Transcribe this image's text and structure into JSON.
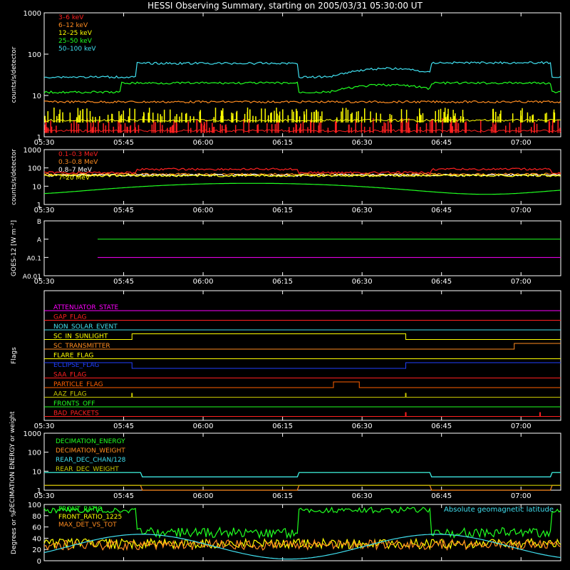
{
  "title": "HESSI Observing Summary, starting on 2005/03/31 05:30:00 UT",
  "time_labels": [
    "05:30",
    "05:45",
    "06:00",
    "06:15",
    "06:30",
    "06:45",
    "07:00"
  ],
  "colors": {
    "red": "#ff2020",
    "orange": "#ff8c20",
    "yellow": "#ffff00",
    "green": "#20ff20",
    "cyan": "#40e0f0",
    "magenta": "#ff00ff",
    "blue": "#2040ff",
    "olive": "#c8c800",
    "dkorange": "#ff6000",
    "white": "#ffffff"
  },
  "chart_data": [
    {
      "type": "line",
      "id": "lowE",
      "ylabel": "counts/s/detector",
      "log": true,
      "ylim": [
        1,
        1000
      ],
      "yticks": [
        "1",
        "10",
        "100",
        "1000"
      ],
      "series": [
        {
          "name": "3–6 keV",
          "color": "red",
          "level": 1.4,
          "style": "spiky"
        },
        {
          "name": "6–12 keV",
          "color": "orange",
          "level": 7
        },
        {
          "name": "12–25 keV",
          "color": "yellow",
          "level": 2.5,
          "style": "spiky"
        },
        {
          "name": "25–50 keV",
          "color": "green",
          "level": 12,
          "step": [
            [
              0.15,
              0.49,
              20
            ],
            [
              0.75,
              0.98,
              20
            ]
          ],
          "hump": [
            0.55,
            0.78,
            18
          ]
        },
        {
          "name": "50–100 keV",
          "color": "cyan",
          "level": 28,
          "step": [
            [
              0.18,
              0.49,
              60
            ],
            [
              0.75,
              0.98,
              62
            ]
          ],
          "hump": [
            0.55,
            0.78,
            45
          ]
        }
      ]
    },
    {
      "type": "line",
      "id": "highE",
      "ylabel": "counts/s/detector",
      "log": true,
      "ylim": [
        1,
        1000
      ],
      "yticks": [
        "1",
        "10",
        "100",
        "1000"
      ],
      "series": [
        {
          "name": "0.1–0.3 MeV",
          "color": "red",
          "level": 55,
          "step": [
            [
              0.18,
              0.49,
              85
            ],
            [
              0.75,
              0.98,
              85
            ]
          ]
        },
        {
          "name": "0.3–0.8 MeV",
          "color": "orange",
          "level": 45
        },
        {
          "name": "0.8–7 MeV",
          "color": "white",
          "level": 40
        },
        {
          "name": "7–20 MeV",
          "color": "yellow",
          "level": 38
        },
        {
          "name": "",
          "color": "green",
          "level": 9,
          "wave": true
        }
      ]
    },
    {
      "type": "line",
      "id": "goes",
      "ylabel": "GOES-12 [W m⁻²]",
      "log": true,
      "yticks": [
        "A0.01",
        "A0.1",
        "A",
        "B"
      ],
      "series": [
        {
          "name": "",
          "color": "green",
          "level": "A"
        },
        {
          "name": "",
          "color": "magenta",
          "level": "A0.1"
        }
      ]
    },
    {
      "type": "flags",
      "id": "flags",
      "ylabel": "Flags",
      "flags": [
        {
          "name": "ATTENUATOR_STATE",
          "color": "magenta"
        },
        {
          "name": "GAP_FLAG",
          "color": "red"
        },
        {
          "name": "NON_SOLAR_EVENT",
          "color": "cyan"
        },
        {
          "name": "SC_IN_SUNLIGHT",
          "color": "yellow",
          "high": [
            [
              0.17,
              0.7
            ]
          ]
        },
        {
          "name": "SC_TRANSMITTER",
          "color": "orange",
          "high": [
            [
              0.91,
              1.0
            ]
          ]
        },
        {
          "name": "FLARE_FLAG",
          "color": "yellow"
        },
        {
          "name": "ECLIPSE_FLAG",
          "color": "blue",
          "high": [
            [
              0.0,
              0.17
            ],
            [
              0.7,
              1.0
            ]
          ]
        },
        {
          "name": "SAA_FLAG",
          "color": "red"
        },
        {
          "name": "PARTICLE_FLAG",
          "color": "dkorange",
          "high": [
            [
              0.56,
              0.61
            ]
          ]
        },
        {
          "name": "AAZ_FLAG",
          "color": "olive",
          "pulses": [
            0.17,
            0.7
          ]
        },
        {
          "name": "FRONTS_OFF",
          "color": "green"
        },
        {
          "name": "BAD_PACKETS",
          "color": "red",
          "pulses": [
            0.7,
            0.96
          ]
        }
      ]
    },
    {
      "type": "line",
      "id": "decim",
      "ylabel": "DECIMATION ENERGY or weight",
      "log": true,
      "ylim": [
        1,
        1000
      ],
      "yticks": [
        "1",
        "10",
        "100",
        "1000"
      ],
      "series": [
        {
          "name": "DECIMATION_ENERGY",
          "color": "green",
          "level": 8.5,
          "drop": [
            [
              0.19,
              0.49,
              5
            ],
            [
              0.75,
              0.98,
              5
            ]
          ]
        },
        {
          "name": "DECIMATION_WEIGHT",
          "color": "orange",
          "level": 1.8,
          "drop": [
            [
              0.19,
              0.49,
              1
            ],
            [
              0.75,
              0.98,
              1
            ]
          ]
        },
        {
          "name": "REAR_DEC_CHAN/128",
          "color": "cyan",
          "level": 8.5,
          "drop": [
            [
              0.19,
              0.49,
              5
            ],
            [
              0.75,
              0.98,
              5
            ]
          ]
        },
        {
          "name": "REAR_DEC_WEIGHT",
          "color": "olive",
          "level": 1.8
        }
      ]
    },
    {
      "type": "line",
      "id": "ratio",
      "ylabel": "Degrees or %",
      "log": false,
      "ylim": [
        0,
        100
      ],
      "yticks": [
        "0",
        "20",
        "40",
        "60",
        "80",
        "100"
      ],
      "annotation": "Absolute geomagnetic latitude",
      "series": [
        {
          "name": "FRONT_RATIO",
          "color": "green",
          "level": 90,
          "step": [
            [
              0.18,
              0.49,
              50
            ],
            [
              0.75,
              0.98,
              50
            ]
          ]
        },
        {
          "name": "FRONT_RATIO_1225",
          "color": "yellow",
          "level": 30
        },
        {
          "name": "MAX_DET_VS_TOT",
          "color": "orange",
          "level": 28
        },
        {
          "name": "",
          "color": "cyan",
          "wave": true
        }
      ]
    }
  ]
}
